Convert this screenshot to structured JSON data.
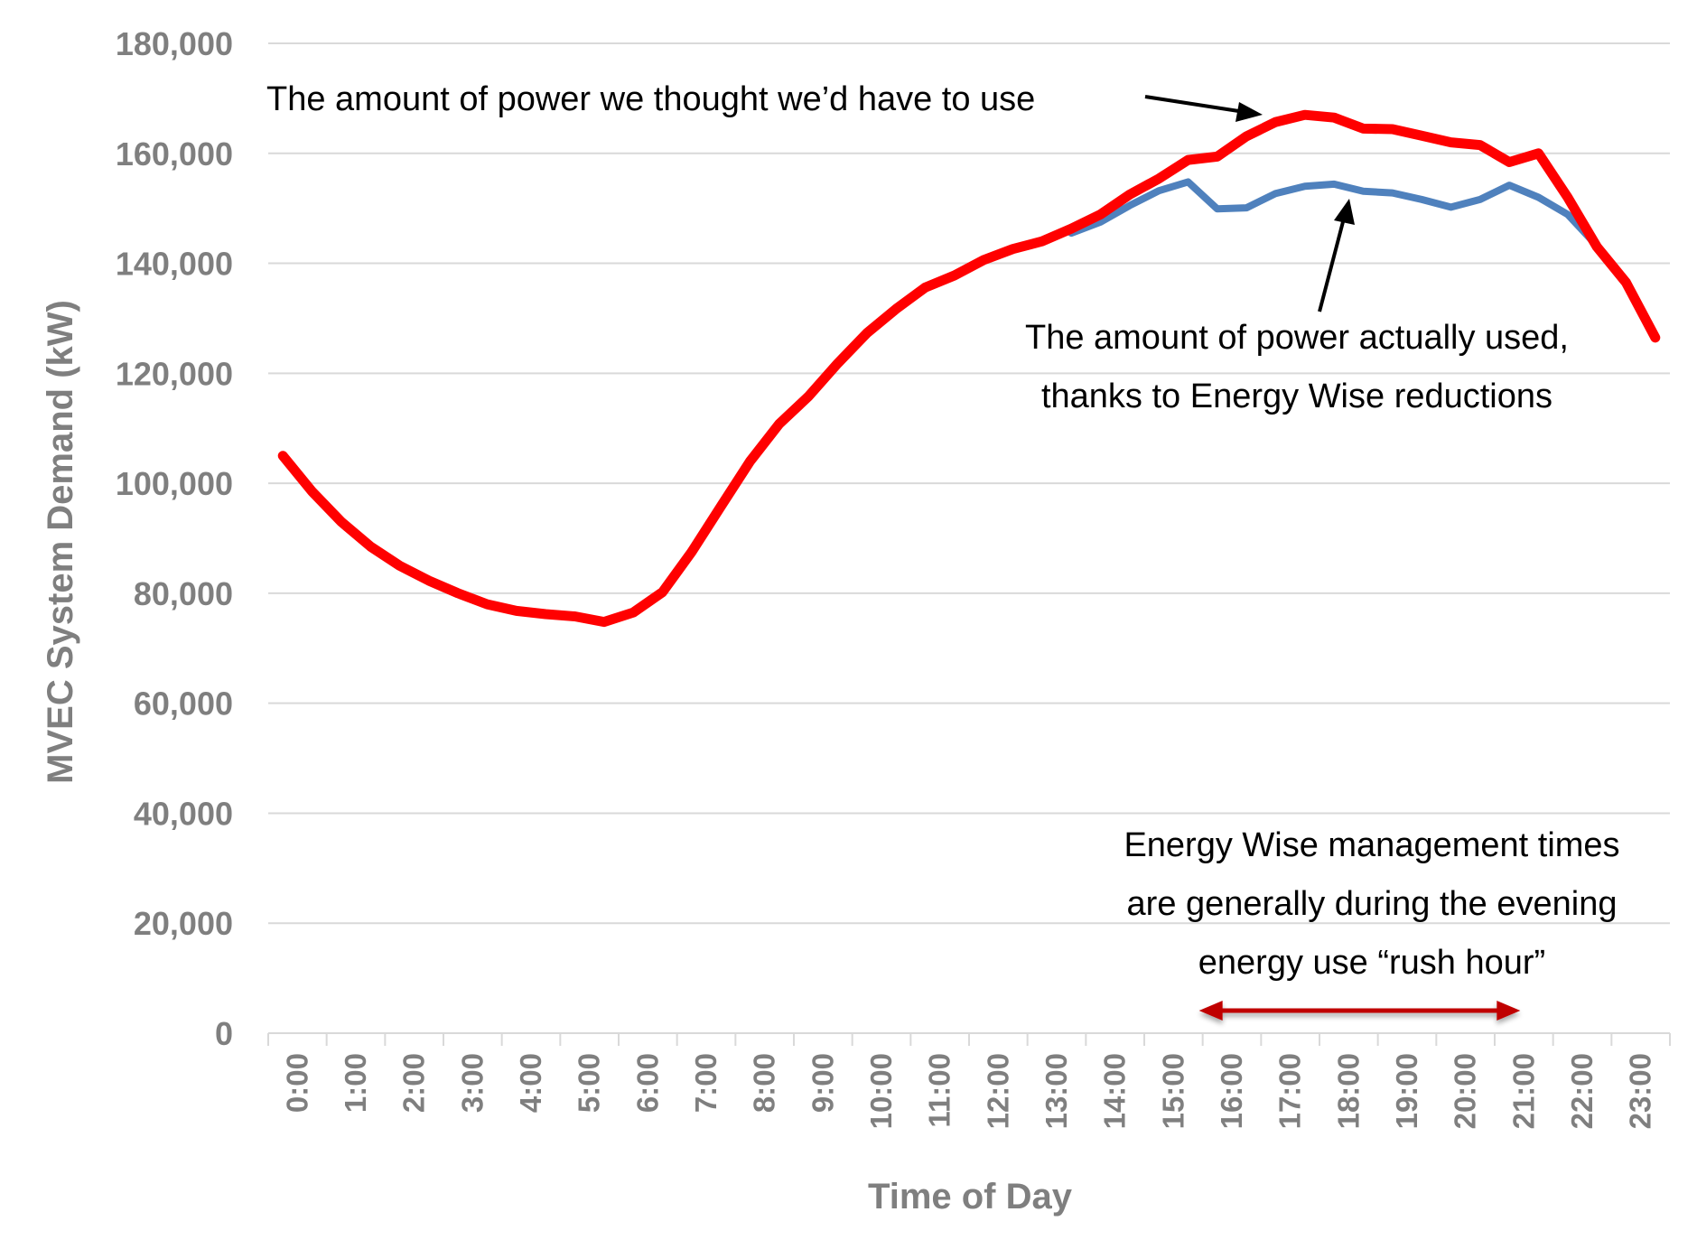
{
  "chart_data": {
    "type": "line",
    "title": "",
    "xlabel": "Time of Day",
    "ylabel": "MVEC System Demand (kW)",
    "ylim": [
      0,
      180000
    ],
    "y_ticks": [
      "0",
      "20,000",
      "40,000",
      "60,000",
      "80,000",
      "100,000",
      "120,000",
      "140,000",
      "160,000",
      "180,000"
    ],
    "x_ticks": [
      "0:00",
      "1:00",
      "2:00",
      "3:00",
      "4:00",
      "5:00",
      "6:00",
      "7:00",
      "8:00",
      "9:00",
      "10:00",
      "11:00",
      "12:00",
      "13:00",
      "14:00",
      "15:00",
      "16:00",
      "17:00",
      "18:00",
      "19:00",
      "20:00",
      "21:00",
      "22:00",
      "23:00"
    ],
    "x_range_hours": [
      0,
      24
    ],
    "grid": true,
    "legend": "none",
    "series": [
      {
        "color": "#ff0000",
        "x": [
          0.25,
          0.75,
          1.25,
          1.75,
          2.25,
          2.75,
          3.25,
          3.75,
          4.25,
          4.75,
          5.25,
          5.75,
          6.25,
          6.75,
          7.25,
          7.75,
          8.25,
          8.75,
          9.25,
          9.75,
          10.25,
          10.75,
          11.25,
          11.75,
          12.25,
          12.75,
          13.25,
          13.75,
          14.25,
          14.75,
          15.25,
          15.75,
          16.25,
          16.75,
          17.25,
          17.75,
          18.25,
          18.75,
          19.25,
          19.75,
          20.25,
          20.75,
          21.25,
          21.75,
          22.25,
          22.75,
          23.25,
          23.75
        ],
        "values": [
          105000,
          98500,
          93000,
          88500,
          85000,
          82300,
          80000,
          78000,
          76800,
          76200,
          75800,
          74800,
          76500,
          80200,
          87500,
          95800,
          104000,
          110800,
          115800,
          121800,
          127300,
          131700,
          135600,
          137800,
          140600,
          142600,
          144000,
          146300,
          148900,
          152500,
          155400,
          158800,
          159400,
          163100,
          165700,
          167000,
          166500,
          164500,
          164400,
          163200,
          162000,
          161500,
          158400,
          160000,
          152000,
          143000,
          136500,
          126500
        ]
      },
      {
        "color": "#4f81bd",
        "x": [
          13.75,
          14.25,
          14.75,
          15.25,
          15.75,
          16.25,
          16.75,
          17.25,
          17.75,
          18.25,
          18.75,
          19.25,
          19.75,
          20.25,
          20.75,
          21.25,
          21.75,
          22.25,
          22.75
        ],
        "values": [
          145500,
          147500,
          150500,
          153200,
          154800,
          149900,
          150100,
          152700,
          154000,
          154400,
          153100,
          152800,
          151600,
          150200,
          151600,
          154200,
          152000,
          148900,
          143200
        ]
      }
    ],
    "annotations": {
      "forecast": "The amount of power we thought we’d have to use",
      "actual_line1": "The amount of power actually used,",
      "actual_line2": "thanks to Energy Wise reductions",
      "mgmt_line1": "Energy Wise management times",
      "mgmt_line2": "are generally during the evening",
      "mgmt_line3": "energy use “rush hour”"
    },
    "management_window_hours": [
      16,
      21.5
    ],
    "arrow_color": "#c00000"
  }
}
